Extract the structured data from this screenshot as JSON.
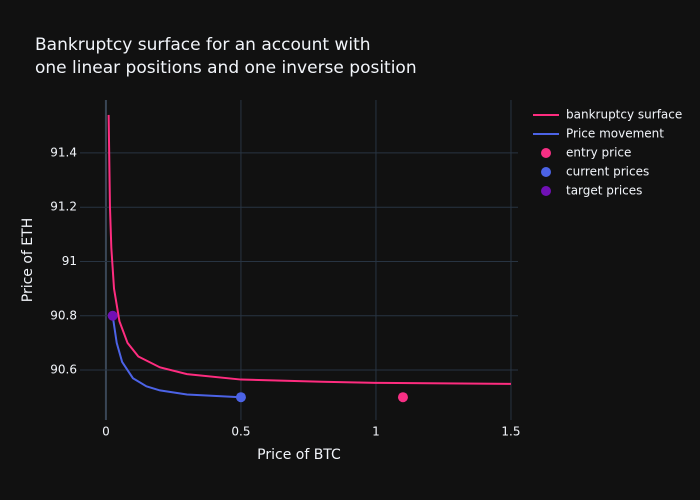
{
  "chart_data": {
    "type": "scatter",
    "title": [
      "Bankruptcy surface for an account with",
      "one linear positions and one inverse position"
    ],
    "x_label": "Price of BTC",
    "y_label": "Price of ETH",
    "xlim": [
      -0.096,
      1.526
    ],
    "ylim": [
      90.416,
      91.595
    ],
    "xticks": [
      0,
      0.5,
      1,
      1.5
    ],
    "yticks": [
      90.6,
      90.8,
      91,
      91.2,
      91.4
    ],
    "grid": true,
    "legend": "outside-right",
    "series": [
      {
        "name": "bankruptcy surface",
        "mode": "lines",
        "color": "#fe2c7f",
        "x": [
          0.01,
          0.015,
          0.02,
          0.03,
          0.05,
          0.08,
          0.12,
          0.2,
          0.3,
          0.5,
          0.8,
          1.0,
          1.5
        ],
        "y": [
          91.54,
          91.2,
          91.05,
          90.9,
          90.78,
          90.7,
          90.65,
          90.61,
          90.585,
          90.565,
          90.557,
          90.553,
          90.549
        ]
      },
      {
        "name": "Price movement",
        "mode": "lines",
        "color": "#4c63e6",
        "x": [
          0.025,
          0.04,
          0.06,
          0.1,
          0.15,
          0.2,
          0.3,
          0.4,
          0.5
        ],
        "y": [
          90.8,
          90.7,
          90.63,
          90.57,
          90.54,
          90.525,
          90.51,
          90.505,
          90.5
        ]
      },
      {
        "name": "entry price",
        "mode": "markers",
        "color": "#f72f84",
        "x": [
          1.1
        ],
        "y": [
          90.5
        ]
      },
      {
        "name": "current prices",
        "mode": "markers",
        "color": "#4c63e6",
        "x": [
          0.5
        ],
        "y": [
          90.5
        ]
      },
      {
        "name": "target prices",
        "mode": "markers",
        "color": "#7010b5",
        "x": [
          0.025
        ],
        "y": [
          90.8
        ]
      }
    ]
  }
}
